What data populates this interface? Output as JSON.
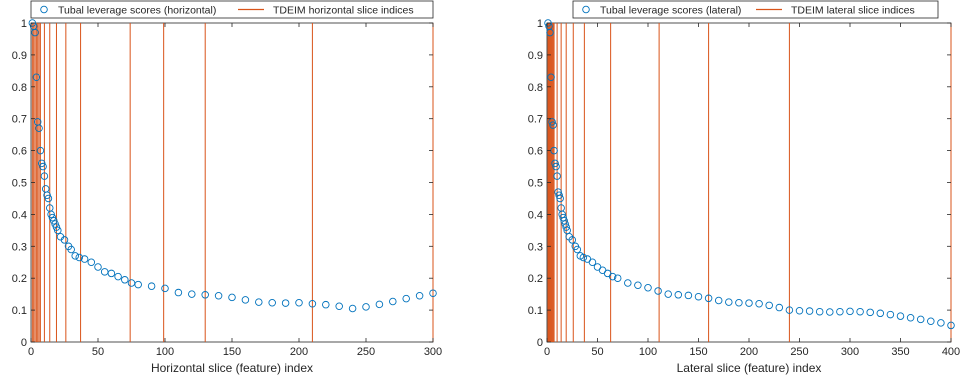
{
  "chart_data": [
    {
      "type": "scatter",
      "xlabel": "Horizontal slice (feature) index",
      "ylabel": "",
      "xlim": [
        0,
        300
      ],
      "ylim": [
        0,
        1
      ],
      "xticks": [
        0,
        50,
        100,
        150,
        200,
        250,
        300
      ],
      "yticks": [
        0,
        0.1,
        0.2,
        0.3,
        0.4,
        0.5,
        0.6,
        0.7,
        0.8,
        0.9,
        1
      ],
      "grid": false,
      "legend_position": "top",
      "series": [
        {
          "name": "Tubal leverage scores (horizontal)",
          "kind": "markers",
          "marker": "circle-open",
          "color": "#0072BD",
          "x": [
            1,
            2,
            3,
            4,
            5,
            6,
            7,
            8,
            9,
            10,
            11,
            12,
            13,
            14,
            15,
            16,
            17,
            18,
            19,
            20,
            22,
            25,
            28,
            30,
            33,
            36,
            40,
            45,
            50,
            55,
            60,
            65,
            70,
            75,
            80,
            90,
            100,
            110,
            120,
            130,
            140,
            150,
            160,
            170,
            180,
            190,
            200,
            210,
            220,
            230,
            240,
            250,
            260,
            270,
            280,
            290,
            300
          ],
          "y": [
            1.0,
            0.99,
            0.97,
            0.83,
            0.69,
            0.67,
            0.6,
            0.56,
            0.55,
            0.52,
            0.48,
            0.46,
            0.45,
            0.42,
            0.4,
            0.39,
            0.38,
            0.37,
            0.36,
            0.35,
            0.33,
            0.32,
            0.3,
            0.29,
            0.27,
            0.265,
            0.26,
            0.25,
            0.235,
            0.22,
            0.215,
            0.205,
            0.195,
            0.185,
            0.18,
            0.175,
            0.168,
            0.155,
            0.15,
            0.148,
            0.145,
            0.14,
            0.132,
            0.125,
            0.123,
            0.122,
            0.123,
            0.12,
            0.117,
            0.112,
            0.105,
            0.11,
            0.118,
            0.127,
            0.136,
            0.145,
            0.153
          ]
        },
        {
          "name": "TDEIM horizontal slice indices",
          "kind": "vlines",
          "color": "#D95319",
          "x": [
            1,
            2,
            3,
            4,
            5,
            6,
            7,
            10,
            14,
            19,
            26,
            37,
            74,
            99,
            130,
            210,
            300
          ]
        }
      ]
    },
    {
      "type": "scatter",
      "xlabel": "Lateral slice (feature) index",
      "ylabel": "",
      "xlim": [
        0,
        400
      ],
      "ylim": [
        0,
        1
      ],
      "xticks": [
        0,
        50,
        100,
        150,
        200,
        250,
        300,
        350,
        400
      ],
      "yticks": [
        0,
        0.1,
        0.2,
        0.3,
        0.4,
        0.5,
        0.6,
        0.7,
        0.8,
        0.9,
        1
      ],
      "grid": false,
      "legend_position": "top",
      "series": [
        {
          "name": "Tubal leverage scores (lateral)",
          "kind": "markers",
          "marker": "circle-open",
          "color": "#0072BD",
          "x": [
            1,
            2,
            3,
            4,
            5,
            6,
            7,
            8,
            9,
            10,
            11,
            12,
            13,
            14,
            15,
            16,
            17,
            18,
            19,
            20,
            22,
            25,
            28,
            30,
            33,
            36,
            40,
            45,
            50,
            55,
            60,
            65,
            70,
            80,
            90,
            100,
            110,
            120,
            130,
            140,
            150,
            160,
            170,
            180,
            190,
            200,
            210,
            220,
            230,
            240,
            250,
            260,
            270,
            280,
            290,
            300,
            310,
            320,
            330,
            340,
            350,
            360,
            370,
            380,
            390,
            400
          ],
          "y": [
            1.0,
            0.99,
            0.97,
            0.83,
            0.69,
            0.68,
            0.6,
            0.56,
            0.55,
            0.52,
            0.47,
            0.46,
            0.45,
            0.42,
            0.4,
            0.39,
            0.38,
            0.37,
            0.36,
            0.35,
            0.33,
            0.32,
            0.3,
            0.29,
            0.27,
            0.265,
            0.26,
            0.25,
            0.235,
            0.225,
            0.215,
            0.205,
            0.2,
            0.185,
            0.178,
            0.17,
            0.16,
            0.15,
            0.148,
            0.146,
            0.142,
            0.137,
            0.13,
            0.125,
            0.123,
            0.122,
            0.12,
            0.115,
            0.108,
            0.1,
            0.098,
            0.097,
            0.095,
            0.094,
            0.095,
            0.096,
            0.095,
            0.093,
            0.09,
            0.086,
            0.081,
            0.076,
            0.071,
            0.065,
            0.06,
            0.052
          ]
        },
        {
          "name": "TDEIM lateral slice indices",
          "kind": "vlines",
          "color": "#D95319",
          "x": [
            1,
            2,
            3,
            4,
            5,
            6,
            7,
            10,
            14,
            19,
            26,
            37,
            63,
            111,
            160,
            240,
            400
          ]
        }
      ]
    }
  ]
}
